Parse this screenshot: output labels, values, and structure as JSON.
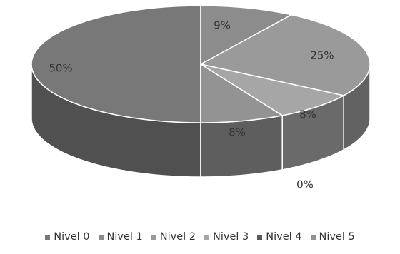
{
  "chart_data": {
    "type": "pie",
    "title": "",
    "style": "3d",
    "categories": [
      "Nivel 0",
      "Nivel 1",
      "Nivel 2",
      "Nivel 3",
      "Nivel 4",
      "Nivel 5"
    ],
    "values": [
      50,
      9,
      25,
      8,
      0,
      8
    ],
    "data_labels": [
      "50%",
      "9%",
      "25%",
      "8%",
      "0%",
      "8%"
    ],
    "colors": [
      "#787878",
      "#8c8c8c",
      "#9a9a9a",
      "#a6a6a6",
      "#5a5a5a",
      "#939393"
    ],
    "side_colors": [
      "#505050",
      "#5a5a5a",
      "#626262",
      "#6a6a6a",
      "#3c3c3c",
      "#5e5e5e"
    ],
    "legend_position": "bottom"
  }
}
